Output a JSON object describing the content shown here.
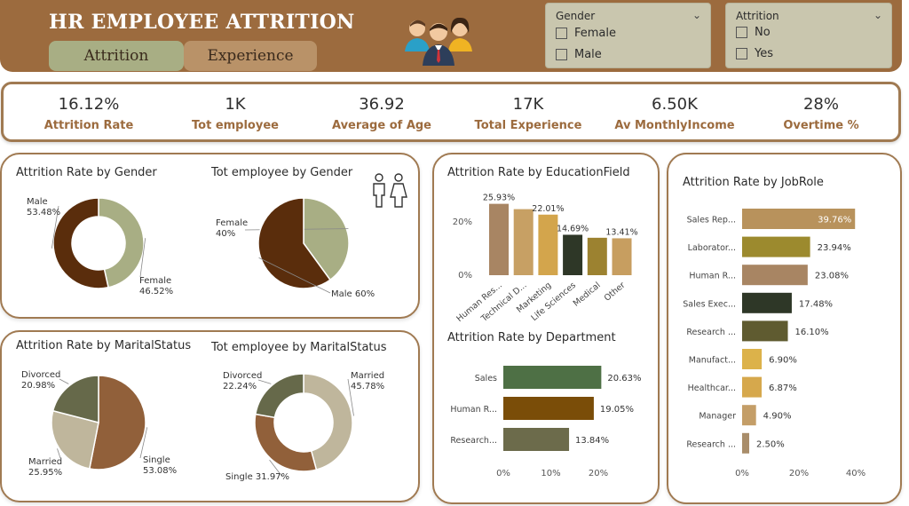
{
  "header": {
    "title": "HR EMPLOYEE ATTRITION",
    "tabs": [
      "Attrition",
      "Experience"
    ]
  },
  "slicers": {
    "gender": {
      "title": "Gender",
      "options": [
        "Female",
        "Male"
      ]
    },
    "attrition": {
      "title": "Attrition",
      "options": [
        "No",
        "Yes"
      ]
    }
  },
  "kpis": [
    {
      "value": "16.12%",
      "label": "Attrition Rate"
    },
    {
      "value": "1K",
      "label": "Tot employee"
    },
    {
      "value": "36.92",
      "label": "Average of Age"
    },
    {
      "value": "17K",
      "label": "Total Experience"
    },
    {
      "value": "6.50K",
      "label": "Av MonthlyIncome"
    },
    {
      "value": "28%",
      "label": "Overtime %"
    }
  ],
  "colors": {
    "header": "#9c6b3e",
    "border": "#a07a52",
    "kpi_label": "#9c6b3e"
  },
  "chart_data": [
    {
      "type": "pie",
      "style": "donut",
      "title": "Attrition Rate by Gender",
      "slices": [
        {
          "label": "Female",
          "value": 46.52,
          "text": "46.52%",
          "color": "#a8ae84"
        },
        {
          "label": "Male",
          "value": 53.48,
          "text": "53.48%",
          "color": "#5a2d0c"
        }
      ]
    },
    {
      "type": "pie",
      "title": "Tot employee by Gender",
      "slices": [
        {
          "label": "Female",
          "value": 40,
          "text": "40%",
          "color": "#a8ae84"
        },
        {
          "label": "Male",
          "value": 60,
          "text": "60%",
          "color": "#5a2d0c"
        }
      ]
    },
    {
      "type": "pie",
      "title": "Attrition Rate by MaritalStatus",
      "slices": [
        {
          "label": "Single",
          "value": 53.08,
          "text": "53.08%",
          "color": "#91603a"
        },
        {
          "label": "Married",
          "value": 25.95,
          "text": "25.95%",
          "color": "#bfb69c"
        },
        {
          "label": "Divorced",
          "value": 20.98,
          "text": "20.98%",
          "color": "#66694a"
        }
      ]
    },
    {
      "type": "pie",
      "style": "donut",
      "title": "Tot employee by MaritalStatus",
      "slices": [
        {
          "label": "Married",
          "value": 45.78,
          "text": "45.78%",
          "color": "#bfb69c"
        },
        {
          "label": "Single",
          "value": 31.97,
          "text": "31.97%",
          "color": "#91603a"
        },
        {
          "label": "Divorced",
          "value": 22.24,
          "text": "22.24%",
          "color": "#66694a"
        }
      ]
    },
    {
      "type": "bar",
      "orientation": "vertical",
      "title": "Attrition Rate by EducationField",
      "categories": [
        "Human Res...",
        "Technical D...",
        "Marketing",
        "Life Sciences",
        "Medical",
        "Other"
      ],
      "values": [
        25.93,
        24.0,
        22.01,
        14.69,
        13.6,
        13.41
      ],
      "labels": [
        "25.93%",
        "",
        "22.01%",
        "14.69%",
        "",
        "13.41%"
      ],
      "colors": [
        "#a88563",
        "#c7a064",
        "#d3a54c",
        "#2e3727",
        "#9c8230",
        "#c79e60"
      ],
      "yticks": [
        "0%",
        "20%"
      ],
      "ylim": [
        0,
        30
      ]
    },
    {
      "type": "bar",
      "orientation": "horizontal",
      "title": "Attrition Rate by Department",
      "categories": [
        "Sales",
        "Human R...",
        "Research..."
      ],
      "values": [
        20.63,
        19.05,
        13.84
      ],
      "labels": [
        "20.63%",
        "19.05%",
        "13.84%"
      ],
      "colors": [
        "#4e7045",
        "#7a4d08",
        "#6c6b4b"
      ],
      "xticks": [
        "0%",
        "10%",
        "20%"
      ],
      "xlim": [
        0,
        20
      ]
    },
    {
      "type": "bar",
      "orientation": "horizontal",
      "title": "Attrition Rate by JobRole",
      "categories": [
        "Sales Rep...",
        "Laborator...",
        "Human R...",
        "Sales Exec...",
        "Research ...",
        "Manufact...",
        "Healthcar...",
        "Manager",
        "Research ..."
      ],
      "values": [
        39.76,
        23.94,
        23.08,
        17.48,
        16.1,
        6.9,
        6.87,
        4.9,
        2.5
      ],
      "labels": [
        "39.76%",
        "23.94%",
        "23.08%",
        "17.48%",
        "16.10%",
        "6.90%",
        "6.87%",
        "4.90%",
        "2.50%"
      ],
      "colors": [
        "#b8925c",
        "#9c8a2e",
        "#a88563",
        "#2e3727",
        "#5f5b30",
        "#dcb24a",
        "#d6a84c",
        "#c49e68",
        "#a98d6a"
      ],
      "xticks": [
        "0%",
        "20%",
        "40%"
      ],
      "xlim": [
        0,
        40
      ]
    }
  ]
}
